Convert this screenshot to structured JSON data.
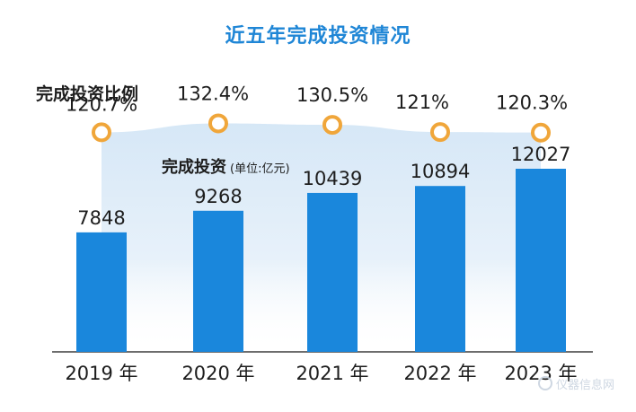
{
  "title": "近五年完成投资情况",
  "legend": {
    "ratio_label": "完成投资比例",
    "investment_label": "完成投资",
    "investment_unit": "(单位:亿元)"
  },
  "watermark": "仪器信息网",
  "colors": {
    "title": "#1f86d6",
    "bar": "#1a87dc",
    "marker_ring": "#f0a63a",
    "area_band": "#d4e6f6",
    "axis": "#3d3d3d",
    "text": "#1d1d1d"
  },
  "chart_data": {
    "type": "bar",
    "title": "近五年完成投资情况",
    "categories": [
      "2019 年",
      "2020 年",
      "2021 年",
      "2022 年",
      "2023 年"
    ],
    "series": [
      {
        "name": "完成投资",
        "unit": "亿元",
        "values": [
          7848,
          9268,
          10439,
          10894,
          12027
        ],
        "labels": [
          "7848",
          "9268",
          "10439",
          "10894",
          "12027"
        ]
      },
      {
        "name": "完成投资比例",
        "type": "line",
        "values": [
          120.7,
          132.4,
          130.5,
          121,
          120.3
        ],
        "labels": [
          "120.7%",
          "132.4%",
          "130.5%",
          "121%",
          "120.3%"
        ]
      }
    ],
    "grid": false,
    "legend": "top-left"
  }
}
